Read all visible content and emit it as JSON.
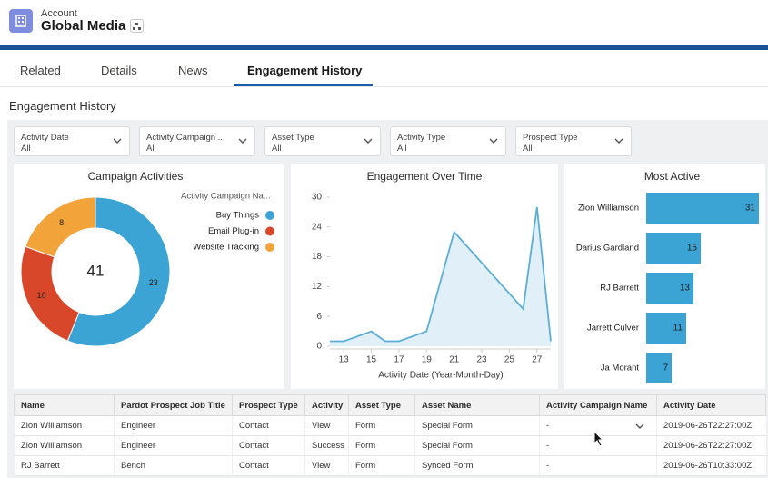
{
  "header": {
    "object_type": "Account",
    "record_name": "Global Media"
  },
  "tabs": [
    "Related",
    "Details",
    "News",
    "Engagement History"
  ],
  "section_title": "Engagement History",
  "filters": [
    {
      "label": "Activity Date",
      "value": "All"
    },
    {
      "label": "Activity Campaign ...",
      "value": "All"
    },
    {
      "label": "Asset Type",
      "value": "All"
    },
    {
      "label": "Activity Type",
      "value": "All"
    },
    {
      "label": "Prospect Type",
      "value": "All"
    }
  ],
  "chart_data": [
    {
      "type": "donut",
      "title": "Campaign Activities",
      "legend_title": "Activity Campaign Na...",
      "categories": [
        "Buy Things",
        "Email Plug-in",
        "Website Tracking"
      ],
      "values": [
        23,
        10,
        8
      ],
      "colors": [
        "#3ba4d4",
        "#d9472b",
        "#f2a33a"
      ],
      "center_label": 41
    },
    {
      "type": "line",
      "title": "Engagement Over Time",
      "x_label": "Activity Date (Year-Month-Day)",
      "x": [
        12,
        13,
        15,
        16,
        17,
        19,
        21,
        26,
        27,
        28
      ],
      "series": [
        {
          "color": "#5aaed6",
          "values": [
            1,
            1,
            3,
            1,
            1,
            3,
            23,
            7.5,
            28,
            1
          ]
        }
      ],
      "xlim": [
        12,
        28
      ],
      "xticks": [
        13,
        15,
        17,
        19,
        21,
        23,
        25,
        27
      ],
      "ylim": [
        0,
        30
      ],
      "yticks": [
        0,
        6,
        12,
        18,
        24,
        30
      ]
    },
    {
      "type": "bar",
      "orientation": "horizontal",
      "title": "Most Active",
      "categories": [
        "Zion Williamson",
        "Darius Gardland",
        "RJ Barrett",
        "Jarrett Culver",
        "Ja Morant"
      ],
      "values": [
        31,
        15,
        13,
        11,
        7
      ],
      "color": "#3ba4d4"
    }
  ],
  "table": {
    "columns": [
      "Name",
      "Pardot Prospect Job Title",
      "Prospect Type",
      "Activity",
      "Asset Type",
      "Asset Name",
      "Activity Campaign Name",
      "Activity Date"
    ],
    "rows": [
      [
        "Zion Williamson",
        "Engineer",
        "Contact",
        "View",
        "Form",
        "Special Form",
        "-",
        "2019-06-26T22:27:00Z"
      ],
      [
        "Zion Williamson",
        "Engineer",
        "Contact",
        "Success",
        "Form",
        "Special Form",
        "-",
        "2019-06-26T22:27:00Z"
      ],
      [
        "RJ Barrett",
        "Bench",
        "Contact",
        "View",
        "Form",
        "Synced Form",
        "-",
        "2019-06-26T10:33:00Z"
      ]
    ]
  }
}
